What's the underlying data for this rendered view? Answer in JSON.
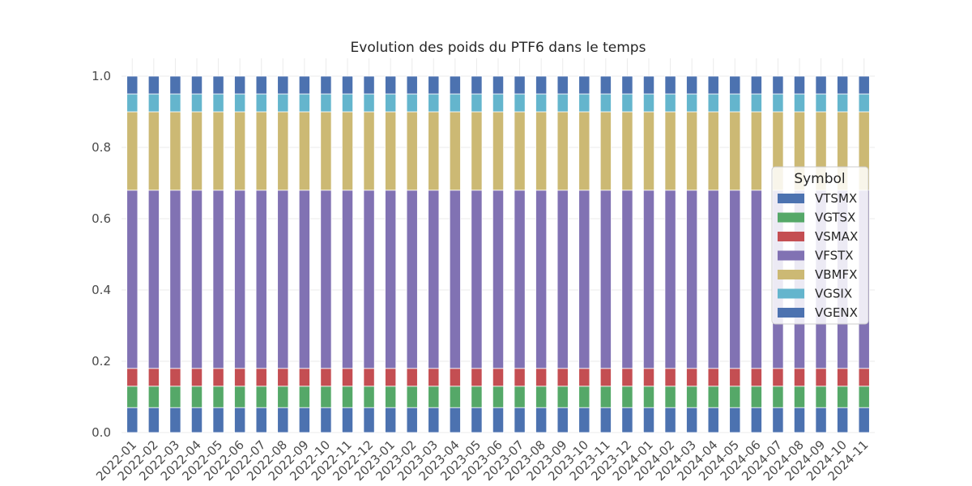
{
  "chart_data": {
    "type": "bar",
    "stacked": true,
    "title": "Evolution des poids du PTF6 dans le temps",
    "xlabel": "",
    "ylabel": "",
    "ylim": [
      0,
      1.0
    ],
    "y_ticks": [
      "0.0",
      "0.2",
      "0.4",
      "0.6",
      "0.8",
      "1.0"
    ],
    "grid": true,
    "legend_title": "Symbol",
    "legend_position": "right",
    "categories": [
      "2022-01",
      "2022-02",
      "2022-03",
      "2022-04",
      "2022-05",
      "2022-06",
      "2022-07",
      "2022-08",
      "2022-09",
      "2022-10",
      "2022-11",
      "2022-12",
      "2023-01",
      "2023-02",
      "2023-03",
      "2023-04",
      "2023-05",
      "2023-06",
      "2023-07",
      "2023-08",
      "2023-09",
      "2023-10",
      "2023-11",
      "2023-12",
      "2024-01",
      "2024-02",
      "2024-03",
      "2024-04",
      "2024-05",
      "2024-06",
      "2024-07",
      "2024-08",
      "2024-09",
      "2024-10",
      "2024-11"
    ],
    "series": [
      {
        "name": "VTSMX",
        "color": "#4c72b0",
        "value": 0.07
      },
      {
        "name": "VGTSX",
        "color": "#55a868",
        "value": 0.06
      },
      {
        "name": "VSMAX",
        "color": "#c44e52",
        "value": 0.05
      },
      {
        "name": "VFSTX",
        "color": "#8172b3",
        "value": 0.5
      },
      {
        "name": "VBMFX",
        "color": "#ccb974",
        "value": 0.22
      },
      {
        "name": "VGSIX",
        "color": "#64b5cd",
        "value": 0.05
      },
      {
        "name": "VGENX",
        "color": "#4c72b0",
        "value": 0.05
      }
    ]
  }
}
